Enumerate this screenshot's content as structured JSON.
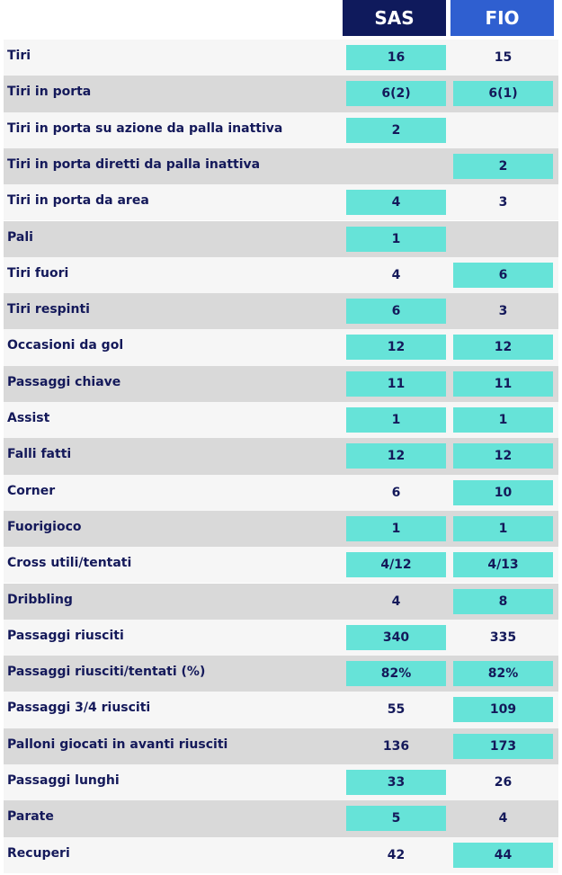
{
  "table": {
    "header": [
      "SAS",
      "FIO"
    ],
    "rows": [
      {
        "label": "Tiri",
        "values": [
          16,
          15
        ],
        "highlight": [
          true,
          false
        ]
      },
      {
        "label": "Tiri in porta",
        "values": [
          "6(2)",
          "6(1)"
        ],
        "highlight": [
          true,
          true
        ]
      },
      {
        "label": "Tiri in porta su azione da palla inattiva",
        "values": [
          2,
          null
        ],
        "highlight": [
          true,
          false
        ]
      },
      {
        "label": "Tiri in porta diretti da palla inattiva",
        "values": [
          null,
          2
        ],
        "highlight": [
          false,
          true
        ]
      },
      {
        "label": "Tiri in porta da area",
        "values": [
          4,
          3
        ],
        "highlight": [
          true,
          false
        ]
      },
      {
        "label": "Pali",
        "values": [
          1,
          null
        ],
        "highlight": [
          true,
          false
        ]
      },
      {
        "label": "Tiri fuori",
        "values": [
          4,
          6
        ],
        "highlight": [
          false,
          true
        ]
      },
      {
        "label": "Tiri respinti",
        "values": [
          6,
          3
        ],
        "highlight": [
          true,
          false
        ]
      },
      {
        "label": "Occasioni da gol",
        "values": [
          12,
          12
        ],
        "highlight": [
          true,
          true
        ]
      },
      {
        "label": "Passaggi chiave",
        "values": [
          11,
          11
        ],
        "highlight": [
          true,
          true
        ]
      },
      {
        "label": "Assist",
        "values": [
          1,
          1
        ],
        "highlight": [
          true,
          true
        ]
      },
      {
        "label": "Falli fatti",
        "values": [
          12,
          12
        ],
        "highlight": [
          true,
          true
        ]
      },
      {
        "label": "Corner",
        "values": [
          6,
          10
        ],
        "highlight": [
          false,
          true
        ]
      },
      {
        "label": "Fuorigioco",
        "values": [
          1,
          1
        ],
        "highlight": [
          true,
          true
        ]
      },
      {
        "label": "Cross utili/tentati",
        "values": [
          "4/12",
          "4/13"
        ],
        "highlight": [
          true,
          true
        ]
      },
      {
        "label": "Dribbling",
        "values": [
          4,
          8
        ],
        "highlight": [
          false,
          true
        ]
      },
      {
        "label": "Passaggi riusciti",
        "values": [
          340,
          335
        ],
        "highlight": [
          true,
          false
        ]
      },
      {
        "label": "Passaggi riusciti/tentati (%)",
        "values": [
          "82%",
          "82%"
        ],
        "highlight": [
          true,
          true
        ]
      },
      {
        "label": "Passaggi 3/4 riusciti",
        "values": [
          55,
          109
        ],
        "highlight": [
          false,
          true
        ]
      },
      {
        "label": "Palloni giocati in avanti riusciti",
        "values": [
          136,
          173
        ],
        "highlight": [
          false,
          true
        ]
      },
      {
        "label": "Passaggi lunghi",
        "values": [
          33,
          26
        ],
        "highlight": [
          true,
          false
        ]
      },
      {
        "label": "Parate",
        "values": [
          5,
          4
        ],
        "highlight": [
          true,
          false
        ]
      },
      {
        "label": "Recuperi",
        "values": [
          42,
          44
        ],
        "highlight": [
          false,
          true
        ]
      }
    ]
  }
}
